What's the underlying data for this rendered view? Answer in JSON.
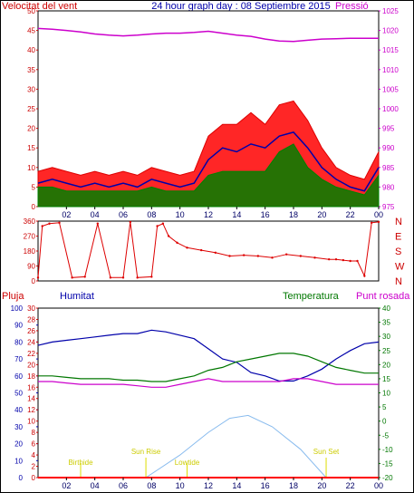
{
  "title": "24 hour graph day : 08 Septiembre 2015",
  "x_ticks": [
    "02",
    "04",
    "06",
    "08",
    "10",
    "12",
    "14",
    "16",
    "18",
    "20",
    "22",
    "00"
  ],
  "colors": {
    "wind": "#dd0000",
    "gust_fill": "#ff0000",
    "avg": "#008000",
    "pressure": "#cc00cc",
    "humidity": "#0000aa",
    "temperature": "#007700",
    "dewpoint": "#cc00cc",
    "solar": "#88bbee",
    "rain": "#ff0000",
    "sun": "#dddd00",
    "frame": "#000000"
  },
  "chart_data": [
    {
      "type": "line",
      "panel": "wind-pressure",
      "left_label": "Velocitat del vent",
      "right_label": "Pressió",
      "left_ticks": [
        "0",
        "5",
        "10",
        "15",
        "20",
        "25",
        "30",
        "35",
        "40",
        "45",
        "50"
      ],
      "right_ticks": [
        "975",
        "980",
        "985",
        "990",
        "995",
        "1000",
        "1005",
        "1010",
        "1015",
        "1020",
        "1025"
      ],
      "ylim": [
        0,
        50
      ],
      "y2lim": [
        975,
        1025
      ],
      "x": [
        0,
        1,
        2,
        3,
        4,
        5,
        6,
        7,
        8,
        9,
        10,
        11,
        12,
        13,
        14,
        15,
        16,
        17,
        18,
        19,
        20,
        21,
        22,
        23,
        24
      ],
      "series": [
        {
          "key": "gust",
          "values": [
            9,
            10,
            9,
            8,
            9,
            8,
            9,
            8,
            10,
            9,
            8,
            9,
            18,
            21,
            21,
            24,
            21,
            26,
            27,
            22,
            15,
            10,
            8,
            7,
            14
          ]
        },
        {
          "key": "speed",
          "values": [
            6,
            7,
            6,
            5,
            6,
            5,
            6,
            5,
            7,
            6,
            5,
            6,
            12,
            15,
            14,
            16,
            15,
            18,
            19,
            15,
            10,
            7,
            5,
            4,
            10
          ]
        },
        {
          "key": "avg",
          "values": [
            5,
            5,
            4,
            4,
            4,
            4,
            4,
            4,
            5,
            4,
            4,
            4,
            8,
            9,
            9,
            9,
            9,
            14,
            16,
            10,
            7,
            5,
            4,
            3,
            8
          ]
        },
        {
          "key": "pressure",
          "values": [
            1020.5,
            1020.3,
            1020,
            1019.6,
            1019.1,
            1018.8,
            1018.6,
            1018.8,
            1019.1,
            1019.3,
            1019.3,
            1019.5,
            1019.8,
            1019.3,
            1018.8,
            1018.5,
            1017.8,
            1017.3,
            1017.2,
            1017.5,
            1017.8,
            1017.9,
            1018.0,
            1018.0,
            1018.0
          ]
        }
      ]
    },
    {
      "type": "scatter",
      "panel": "wind-direction",
      "left_ticks": [
        "0",
        "90",
        "180",
        "270",
        "360"
      ],
      "right_ticks": [
        "N",
        "W",
        "S",
        "E",
        "N"
      ],
      "ylim": [
        0,
        360
      ],
      "x": [
        0,
        0.3,
        0.8,
        1.5,
        2.4,
        3.3,
        4.2,
        5.1,
        6.0,
        6.5,
        7.0,
        8.0,
        8.4,
        8.8,
        9.2,
        9.8,
        10.5,
        11.5,
        12.5,
        13.5,
        14.5,
        15.5,
        16.5,
        17.5,
        18.5,
        19.5,
        20.5,
        21.0,
        21.5,
        22.0,
        22.5,
        23.0,
        23.5,
        24.0
      ],
      "values": [
        20,
        330,
        345,
        350,
        20,
        25,
        345,
        20,
        20,
        355,
        20,
        25,
        330,
        345,
        270,
        230,
        200,
        185,
        170,
        150,
        155,
        150,
        140,
        160,
        150,
        140,
        130,
        130,
        125,
        120,
        120,
        30,
        350,
        355
      ]
    },
    {
      "type": "line",
      "panel": "humidity-temperature",
      "labels": {
        "rain": "Pluja",
        "humidity": "Humitat",
        "temperature": "Temperatura",
        "dewpoint": "Punt rosada"
      },
      "left_ticks": [
        "0",
        "10",
        "20",
        "30",
        "40",
        "50",
        "60",
        "70",
        "80",
        "90",
        "100"
      ],
      "rain_ticks": [
        "0",
        "2",
        "4",
        "6",
        "8",
        "10",
        "12",
        "14",
        "16",
        "18",
        "20",
        "22",
        "24",
        "26",
        "28",
        "30"
      ],
      "right_ticks": [
        "-20",
        "-15",
        "-10",
        "-5",
        "0",
        "5",
        "10",
        "15",
        "20",
        "25",
        "30",
        "35",
        "40"
      ],
      "ylim": [
        0,
        100
      ],
      "y2lim": [
        -20,
        40
      ],
      "x": [
        0,
        1,
        2,
        3,
        4,
        5,
        6,
        7,
        8,
        9,
        10,
        11,
        12,
        13,
        14,
        15,
        16,
        17,
        18,
        19,
        20,
        21,
        22,
        23,
        24
      ],
      "series": [
        {
          "key": "humidity",
          "values": [
            78,
            80,
            81,
            82,
            83,
            84,
            85,
            85,
            87,
            86,
            84,
            82,
            76,
            70,
            68,
            62,
            60,
            57,
            57,
            60,
            64,
            70,
            75,
            79,
            80
          ]
        },
        {
          "key": "temperature",
          "values": [
            16,
            16,
            15.5,
            15,
            15,
            15,
            14.5,
            14.5,
            14,
            14,
            15,
            16,
            18,
            19,
            21,
            22,
            23,
            24,
            24,
            23,
            21,
            19,
            18,
            17,
            17
          ]
        },
        {
          "key": "dewpoint",
          "values": [
            14,
            14,
            13.5,
            13,
            13,
            13,
            13,
            12.5,
            12,
            12,
            13,
            14,
            15,
            14,
            14,
            14,
            14,
            14,
            15,
            15,
            14,
            13,
            13,
            13,
            13
          ]
        },
        {
          "key": "rain",
          "values": [
            0,
            0,
            0,
            0,
            0,
            0,
            0,
            0,
            0,
            0,
            0,
            0,
            0,
            0,
            0,
            0,
            0,
            0,
            0,
            0,
            0,
            0,
            0,
            0,
            0
          ]
        }
      ],
      "solar_curve": [
        [
          7.6,
          0
        ],
        [
          10,
          8
        ],
        [
          12,
          16
        ],
        [
          13.5,
          21
        ],
        [
          14.8,
          22
        ],
        [
          16.5,
          18
        ],
        [
          18.5,
          10
        ],
        [
          20.3,
          0
        ]
      ],
      "sun": [
        {
          "label": "Sun Rise",
          "hour": 7.6
        },
        {
          "label": "Sun Set",
          "hour": 20.3
        }
      ],
      "moon_labels": [
        {
          "label": "Birthide",
          "hour": 3
        },
        {
          "label": "Lowtide",
          "hour": 10.5
        }
      ]
    }
  ]
}
